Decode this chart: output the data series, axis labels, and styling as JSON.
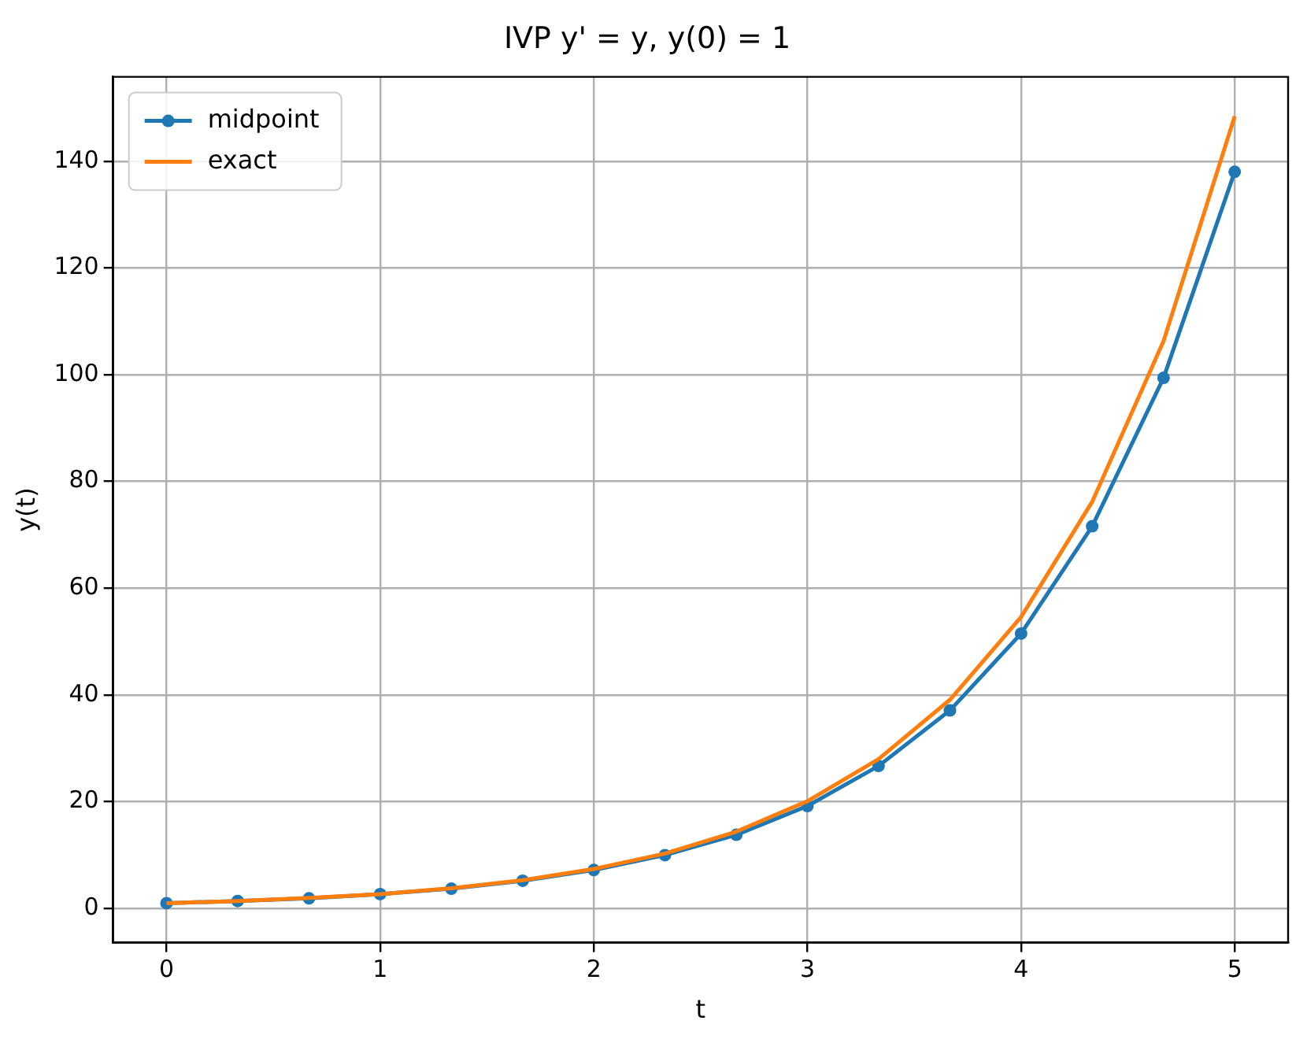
{
  "chart_data": {
    "type": "line",
    "title": "IVP y' = y, y(0) = 1",
    "xlabel": "t",
    "ylabel": "y(t)",
    "x": [
      0,
      0.333,
      0.667,
      1,
      1.333,
      1.667,
      2,
      2.333,
      2.667,
      3,
      3.333,
      3.667,
      4,
      4.333,
      4.667,
      5
    ],
    "series": [
      {
        "name": "midpoint",
        "color": "#1f77b4",
        "marker": "circle",
        "values": [
          1,
          1.4,
          1.9,
          2.7,
          3.7,
          5.2,
          7.2,
          10.0,
          13.8,
          19.2,
          26.7,
          37.1,
          51.5,
          71.6,
          99.4,
          138.0
        ]
      },
      {
        "name": "exact",
        "color": "#ff7f0e",
        "marker": "none",
        "values": [
          1,
          1.4,
          2.0,
          2.7,
          3.8,
          5.3,
          7.4,
          10.3,
          14.4,
          20.1,
          28.0,
          39.1,
          54.6,
          76.2,
          106.3,
          148.4
        ]
      }
    ],
    "xlim": [
      -0.25,
      5.25
    ],
    "xticks": [
      0,
      1,
      2,
      3,
      4,
      5
    ],
    "ylim": [
      -6.4,
      155.8
    ],
    "yticks": [
      0,
      20,
      40,
      60,
      80,
      100,
      120,
      140
    ],
    "grid": true,
    "legend": "top left",
    "line_style": "solid"
  }
}
